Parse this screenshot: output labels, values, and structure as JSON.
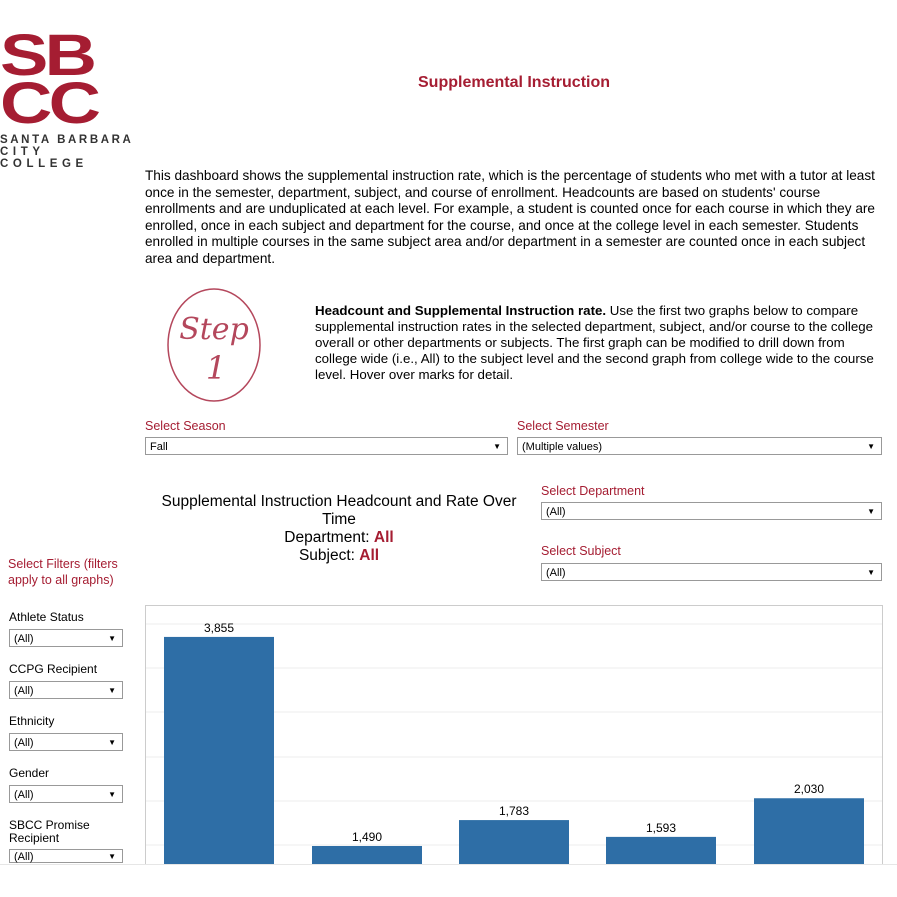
{
  "logo": {
    "letters_top": "SB",
    "letters_bottom": "CC",
    "line1": "SANTA BARBARA",
    "line2": "CITY COLLEGE"
  },
  "header": {
    "title": "Supplemental Instruction"
  },
  "intro": "This dashboard shows the supplemental instruction rate, which is the percentage of students who met with a tutor at least once in the semester, department, subject, and course of enrollment. Headcounts are based on students' course enrollments and are unduplicated at each level. For example, a student is counted once for each course in which they are enrolled, once in each subject and department for the course, and once at the college level in each semester. Students enrolled in multiple courses in the same subject area and/or department in a semester are counted once in each subject area and department.",
  "step": {
    "badge_word": "Step",
    "badge_number": "1",
    "heading": "Headcount and Supplemental Instruction rate.",
    "body": " Use the first two graphs below to compare supplemental instruction rates in the selected department, subject, and/or course to the college overall or other departments or subjects. The first graph can be modified to drill down from college wide (i.e., All) to the subject level and the second graph from college wide to the course level. Hover over marks for detail."
  },
  "filters_top": {
    "season": {
      "label": "Select Season",
      "value": "Fall"
    },
    "semester": {
      "label": "Select Semester",
      "value": "(Multiple values)"
    },
    "department": {
      "label": "Select Department",
      "value": "(All)"
    },
    "subject": {
      "label": "Select Subject",
      "value": "(All)"
    }
  },
  "chart_heading": {
    "line1": "Supplemental Instruction Headcount and Rate Over Time",
    "dept_label": "Department: ",
    "dept_value": "All",
    "subj_label": "Subject: ",
    "subj_value": "All"
  },
  "sidebar": {
    "title": "Select Filters (filters apply to all graphs)",
    "filters": [
      {
        "label": "Athlete Status",
        "value": "(All)"
      },
      {
        "label": "CCPG Recipient",
        "value": "(All)"
      },
      {
        "label": "Ethnicity",
        "value": "(All)"
      },
      {
        "label": "Gender",
        "value": "(All)"
      },
      {
        "label": "SBCC Promise Recipient",
        "value": "(All)"
      }
    ]
  },
  "colors": {
    "brand": "#a51d32",
    "bar": "#2e6ea6"
  },
  "chart_data": {
    "type": "bar",
    "values": [
      3855,
      1490,
      1783,
      1593,
      2030
    ],
    "data_labels": [
      "3,855",
      "1,490",
      "1,783",
      "1,593",
      "2,030"
    ],
    "grid": true
  }
}
